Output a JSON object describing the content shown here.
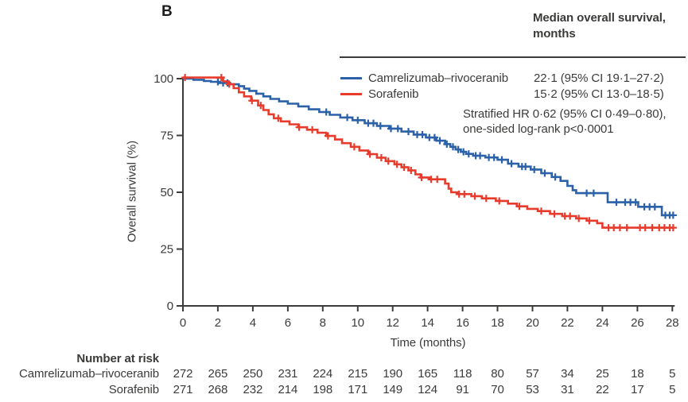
{
  "panel_label": "B",
  "colors": {
    "blue": "#2a61a8",
    "red": "#e73b2c",
    "axis": "#3b3b3a",
    "text": "#3b3b3a"
  },
  "legend": {
    "header_line1": "Median overall survival,",
    "header_line2": "months"
  },
  "annotation": {
    "line1": "Stratified HR 0·62 (95% CI 0·49–0·80),",
    "line2": "one-sided log-rank p<0·0001"
  },
  "axes": {
    "xlabel": "Time (months)",
    "ylabel": "Overall survival (%)"
  },
  "risk_table": {
    "header": "Number at risk",
    "rows": [
      {
        "label": "Camrelizumab–rivoceranib",
        "values": [
          272,
          265,
          250,
          231,
          224,
          215,
          190,
          165,
          118,
          80,
          57,
          34,
          25,
          18,
          5
        ]
      },
      {
        "label": "Sorafenib",
        "values": [
          271,
          268,
          232,
          214,
          198,
          171,
          149,
          124,
          91,
          70,
          53,
          31,
          22,
          17,
          5
        ]
      }
    ]
  },
  "chart_data": {
    "type": "line",
    "subtype": "kaplan_meier_step",
    "title": "",
    "xlabel": "Time (months)",
    "ylabel": "Overall survival (%)",
    "xlim": [
      0,
      28
    ],
    "ylim": [
      0,
      100
    ],
    "x_ticks": [
      0,
      2,
      4,
      6,
      8,
      10,
      12,
      14,
      16,
      18,
      20,
      22,
      24,
      26,
      28
    ],
    "y_ticks": [
      0,
      25,
      50,
      75,
      100
    ],
    "grid": false,
    "legend_position": "top-right-inside",
    "series": [
      {
        "name": "Camrelizumab–rivoceranib",
        "color": "#2a61a8",
        "median_label": "22·1 (95% CI 19·1–27·2)",
        "median_months": 22.1,
        "steps": [
          [
            0,
            100
          ],
          [
            0.6,
            99.5
          ],
          [
            1.2,
            99
          ],
          [
            1.6,
            98.6
          ],
          [
            2.1,
            98.1
          ],
          [
            2.7,
            97.5
          ],
          [
            3.2,
            96.7
          ],
          [
            3.5,
            95.6
          ],
          [
            3.8,
            94.6
          ],
          [
            4.2,
            93.4
          ],
          [
            4.6,
            92.2
          ],
          [
            5,
            91.1
          ],
          [
            5.5,
            90
          ],
          [
            6,
            89
          ],
          [
            6.6,
            87.8
          ],
          [
            7.2,
            86.5
          ],
          [
            7.8,
            85.3
          ],
          [
            8.4,
            84.1
          ],
          [
            9,
            82.9
          ],
          [
            9.7,
            81.7
          ],
          [
            10.4,
            80.4
          ],
          [
            11.1,
            79.2
          ],
          [
            11.8,
            78
          ],
          [
            12.5,
            76.7
          ],
          [
            13.2,
            75.4
          ],
          [
            13.9,
            74.1
          ],
          [
            14.5,
            72.7
          ],
          [
            15,
            71.2
          ],
          [
            15.3,
            70
          ],
          [
            15.6,
            68.8
          ],
          [
            15.9,
            67.8
          ],
          [
            16.2,
            66.9
          ],
          [
            16.6,
            66.1
          ],
          [
            17.3,
            65.3
          ],
          [
            18,
            64.3
          ],
          [
            18.6,
            62.6
          ],
          [
            19.2,
            61.3
          ],
          [
            19.9,
            60
          ],
          [
            20.5,
            58.4
          ],
          [
            21.1,
            56.7
          ],
          [
            21.6,
            55
          ],
          [
            22,
            52.8
          ],
          [
            22.3,
            50.9
          ],
          [
            22.5,
            49.6
          ],
          [
            24.3,
            45.6
          ],
          [
            26.05,
            43.6
          ],
          [
            27.4,
            39.9
          ],
          [
            28.1,
            39.9
          ]
        ],
        "censors": [
          [
            2,
            98.6
          ],
          [
            2.3,
            98.1
          ],
          [
            2.55,
            98.1
          ],
          [
            8.2,
            85.3
          ],
          [
            9.4,
            82.9
          ],
          [
            10,
            81.7
          ],
          [
            10.6,
            80.4
          ],
          [
            10.9,
            80.4
          ],
          [
            11.3,
            79.2
          ],
          [
            11.9,
            78
          ],
          [
            12.3,
            78
          ],
          [
            12.9,
            76.7
          ],
          [
            13.4,
            75.4
          ],
          [
            13.7,
            75.4
          ],
          [
            14.1,
            74.1
          ],
          [
            14.4,
            74.1
          ],
          [
            14.7,
            72.7
          ],
          [
            15.1,
            71.2
          ],
          [
            15.45,
            70
          ],
          [
            15.75,
            68.8
          ],
          [
            16.05,
            67.8
          ],
          [
            16.35,
            66.9
          ],
          [
            16.75,
            66.1
          ],
          [
            17,
            66.1
          ],
          [
            17.5,
            65.3
          ],
          [
            17.8,
            65.3
          ],
          [
            18.25,
            64.3
          ],
          [
            18.8,
            62.6
          ],
          [
            19.4,
            61.3
          ],
          [
            19.6,
            61.3
          ],
          [
            20.1,
            60
          ],
          [
            20.7,
            58.4
          ],
          [
            21.3,
            56.7
          ],
          [
            23.1,
            49.6
          ],
          [
            23.5,
            49.6
          ],
          [
            24.8,
            45.6
          ],
          [
            25.3,
            45.6
          ],
          [
            25.6,
            45.6
          ],
          [
            25.9,
            45.6
          ],
          [
            26.4,
            43.6
          ],
          [
            26.7,
            43.6
          ],
          [
            27,
            43.6
          ],
          [
            27.6,
            39.9
          ],
          [
            27.85,
            39.9
          ],
          [
            28.05,
            39.9
          ]
        ]
      },
      {
        "name": "Sorafenib",
        "color": "#e73b2c",
        "median_label": "15·2 (95% CI 13·0–18·5)",
        "median_months": 15.2,
        "steps": [
          [
            0,
            100.5
          ],
          [
            2.3,
            98.8
          ],
          [
            2.6,
            97.6
          ],
          [
            2.9,
            95.8
          ],
          [
            3.2,
            94
          ],
          [
            3.5,
            92.2
          ],
          [
            3.9,
            90.3
          ],
          [
            4.3,
            88.2
          ],
          [
            4.6,
            86.2
          ],
          [
            4.9,
            84.3
          ],
          [
            5.2,
            82.6
          ],
          [
            5.6,
            81.2
          ],
          [
            6.1,
            79.9
          ],
          [
            6.6,
            78.6
          ],
          [
            7.1,
            77.5
          ],
          [
            7.7,
            76.2
          ],
          [
            8.2,
            74.8
          ],
          [
            8.7,
            73.2
          ],
          [
            9.1,
            71.6
          ],
          [
            9.6,
            70
          ],
          [
            10.1,
            68.4
          ],
          [
            10.6,
            66.8
          ],
          [
            11.1,
            65.2
          ],
          [
            11.6,
            63.7
          ],
          [
            12.1,
            62.3
          ],
          [
            12.5,
            61
          ],
          [
            12.9,
            59.6
          ],
          [
            13.3,
            57.9
          ],
          [
            13.6,
            56.5
          ],
          [
            14.1,
            55.7
          ],
          [
            15,
            53.8
          ],
          [
            15.2,
            51.6
          ],
          [
            15.35,
            50
          ],
          [
            15.7,
            49.2
          ],
          [
            16.5,
            48.3
          ],
          [
            17.1,
            47.3
          ],
          [
            17.9,
            46.2
          ],
          [
            18.6,
            45
          ],
          [
            19.1,
            43.8
          ],
          [
            19.7,
            42.7
          ],
          [
            20.3,
            41.7
          ],
          [
            21,
            40.5
          ],
          [
            21.7,
            39.5
          ],
          [
            22.5,
            38.5
          ],
          [
            23.1,
            37.5
          ],
          [
            23.7,
            36.4
          ],
          [
            24,
            34.4
          ],
          [
            28.1,
            34.4
          ]
        ],
        "censors": [
          [
            0.12,
            100.5
          ],
          [
            2.2,
            100.5
          ],
          [
            2.65,
            97.6
          ],
          [
            3.95,
            90.3
          ],
          [
            4.45,
            88.2
          ],
          [
            5.45,
            82.6
          ],
          [
            6.65,
            78.6
          ],
          [
            7.4,
            77.5
          ],
          [
            8.3,
            74.8
          ],
          [
            9.8,
            70
          ],
          [
            10.7,
            66.8
          ],
          [
            11.35,
            65.2
          ],
          [
            11.75,
            63.7
          ],
          [
            12.25,
            62.3
          ],
          [
            12.65,
            61
          ],
          [
            13.05,
            59.6
          ],
          [
            13.65,
            56.5
          ],
          [
            14.2,
            55.7
          ],
          [
            14.55,
            55.7
          ],
          [
            15.8,
            49.2
          ],
          [
            16.1,
            49.2
          ],
          [
            16.7,
            48.3
          ],
          [
            17.35,
            47.3
          ],
          [
            18.1,
            46.2
          ],
          [
            19.25,
            43.8
          ],
          [
            20.5,
            41.7
          ],
          [
            21.25,
            40.5
          ],
          [
            21.85,
            39.5
          ],
          [
            22.15,
            39.5
          ],
          [
            22.65,
            38.5
          ],
          [
            23.25,
            37.5
          ],
          [
            24.35,
            34.4
          ],
          [
            24.65,
            34.4
          ],
          [
            25,
            34.4
          ],
          [
            25.4,
            34.4
          ],
          [
            26.15,
            34.4
          ],
          [
            26.45,
            34.4
          ],
          [
            26.85,
            34.4
          ],
          [
            27.25,
            34.4
          ],
          [
            27.55,
            34.4
          ],
          [
            27.85,
            34.4
          ],
          [
            28.05,
            34.4
          ]
        ]
      }
    ]
  }
}
